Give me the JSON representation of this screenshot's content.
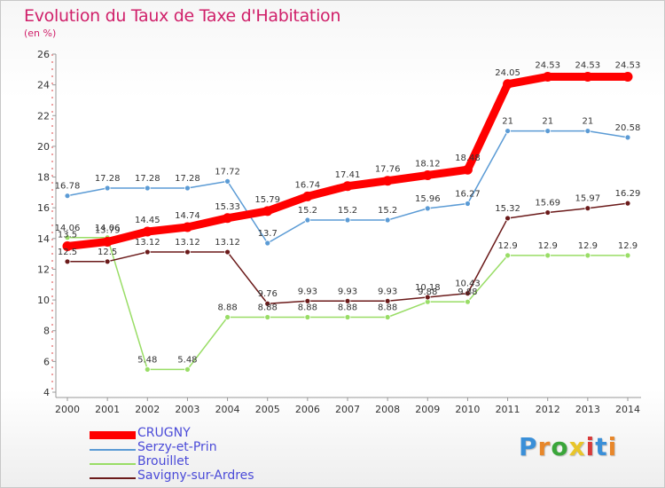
{
  "header": {
    "title": "Evolution du Taux de Taxe d'Habitation",
    "unit": "(en %)"
  },
  "brand": {
    "letters": [
      "P",
      "r",
      "o",
      "x",
      "i",
      "t",
      "i"
    ],
    "colors": [
      "#3a8fd8",
      "#e8872a",
      "#3aa63a",
      "#e8c52a",
      "#d83a3a",
      "#3a8fd8",
      "#e8872a"
    ]
  },
  "chart_data": {
    "type": "line",
    "title": "Evolution du Taux de Taxe d'Habitation",
    "ylabel": "(en %)",
    "xlabel": "",
    "x": [
      "2000",
      "2001",
      "2002",
      "2003",
      "2004",
      "2005",
      "2006",
      "2007",
      "2008",
      "2009",
      "2010",
      "2011",
      "2012",
      "2013",
      "2014"
    ],
    "ylim": [
      4,
      26
    ],
    "yticks": [
      4,
      6,
      8,
      10,
      12,
      14,
      16,
      18,
      20,
      22,
      24,
      26
    ],
    "grid": false,
    "legend_position": "bottom-left",
    "series": [
      {
        "name": "CRUGNY",
        "color": "#ff0000",
        "emphasis": true,
        "values": [
          13.5,
          13.79,
          14.45,
          14.74,
          15.33,
          15.79,
          16.74,
          17.41,
          17.76,
          18.12,
          18.48,
          24.05,
          24.53,
          24.53,
          24.53
        ],
        "labels": [
          "13.5",
          "13.79",
          "14.45",
          "14.74",
          "15.33",
          "15.79",
          "16.74",
          "17.41",
          "17.76",
          "18.12",
          "18.48",
          "24.05",
          "24.53",
          "24.53",
          "24.53"
        ]
      },
      {
        "name": "Serzy-et-Prin",
        "color": "#5b9bd5",
        "values": [
          16.78,
          17.28,
          17.28,
          17.28,
          17.72,
          13.7,
          15.2,
          15.2,
          15.2,
          15.96,
          16.27,
          21,
          21,
          21,
          20.58
        ],
        "labels": [
          "16.78",
          "17.28",
          "17.28",
          "17.28",
          "17.72",
          "13.7",
          "15.2",
          "15.2",
          "15.2",
          "15.96",
          "16.27",
          "21",
          "21",
          "21",
          "20.58"
        ]
      },
      {
        "name": "Brouillet",
        "color": "#99dd66",
        "values": [
          14.06,
          14.06,
          5.48,
          5.48,
          8.88,
          8.88,
          8.88,
          8.88,
          8.88,
          9.88,
          9.88,
          12.9,
          12.9,
          12.9,
          12.9
        ],
        "labels": [
          "14.06",
          "14.06",
          "5.48",
          "5.48",
          "8.88",
          "8.88",
          "8.88",
          "8.88",
          "8.88",
          "9.88",
          "9.88",
          "12.9",
          "12.9",
          "12.9",
          "12.9"
        ]
      },
      {
        "name": "Savigny-sur-Ardres",
        "color": "#6b1a1a",
        "values": [
          12.5,
          12.5,
          13.12,
          13.12,
          13.12,
          9.76,
          9.93,
          9.93,
          9.93,
          10.18,
          10.43,
          15.32,
          15.69,
          15.97,
          16.29
        ],
        "labels": [
          "12.5",
          "12.5",
          "13.12",
          "13.12",
          "13.12",
          "9.76",
          "9.93",
          "9.93",
          "9.93",
          "10.18",
          "10.43",
          "15.32",
          "15.69",
          "15.97",
          "16.29"
        ]
      }
    ]
  }
}
